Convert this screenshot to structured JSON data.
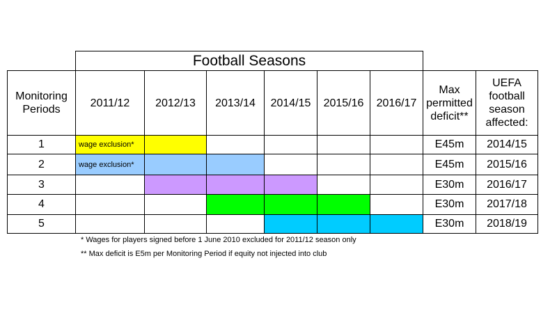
{
  "title": "Football Seasons",
  "col_headers": {
    "periods": "Monitoring Periods",
    "seasons": [
      "2011/12",
      "2012/13",
      "2013/14",
      "2014/15",
      "2015/16",
      "2016/17"
    ],
    "max_deficit": "Max permitted deficit**",
    "uefa_season": "UEFA football season affected:"
  },
  "rows": [
    {
      "period": "1",
      "max_deficit": "E45m",
      "uefa_season": "2014/15",
      "fill": [
        "yellow",
        "yellow",
        "",
        "",
        "",
        ""
      ],
      "note": "wage exclusion*"
    },
    {
      "period": "2",
      "max_deficit": "E45m",
      "uefa_season": "2015/16",
      "fill": [
        "lightblue",
        "lightblue",
        "lightblue",
        "",
        "",
        ""
      ],
      "note": "wage exclusion*"
    },
    {
      "period": "3",
      "max_deficit": "E30m",
      "uefa_season": "2016/17",
      "fill": [
        "",
        "lavender",
        "lavender",
        "lavender",
        "",
        ""
      ],
      "note": ""
    },
    {
      "period": "4",
      "max_deficit": "E30m",
      "uefa_season": "2017/18",
      "fill": [
        "",
        "",
        "green",
        "green",
        "green",
        ""
      ],
      "note": ""
    },
    {
      "period": "5",
      "max_deficit": "E30m",
      "uefa_season": "2018/19",
      "fill": [
        "",
        "",
        "",
        "cyan",
        "cyan",
        "cyan"
      ],
      "note": ""
    }
  ],
  "colors": {
    "yellow": "#ffff00",
    "lightblue": "#99ccff",
    "lavender": "#cc99ff",
    "green": "#00ff00",
    "cyan": "#00ccff"
  },
  "footnotes": [
    "* Wages for players signed before 1 June 2010 excluded for 2011/12 season only",
    "** Max deficit is E5m per Monitoring Period if equity not injected into club"
  ]
}
